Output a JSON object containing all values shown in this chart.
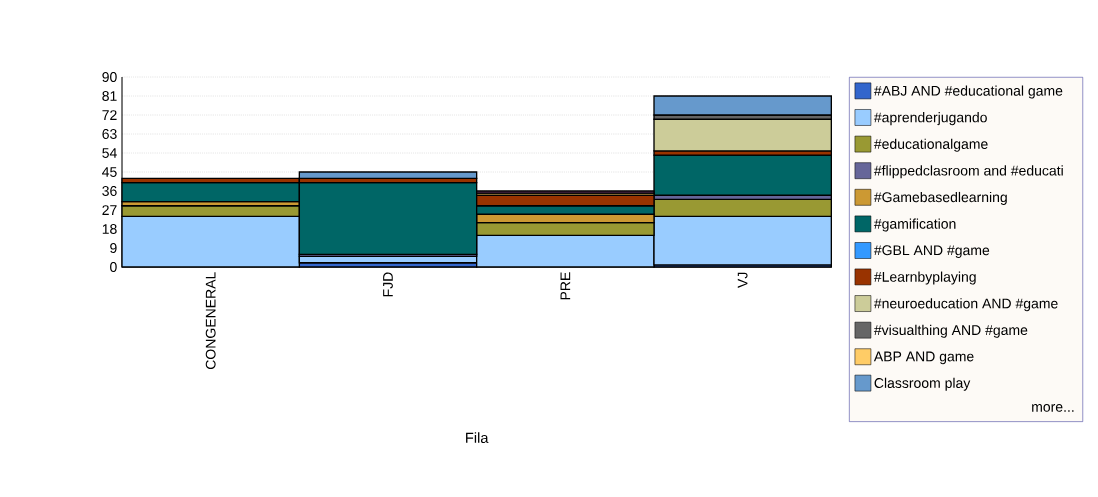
{
  "chart_data": {
    "type": "bar",
    "stacked": true,
    "xlabel": "Fila",
    "categories": [
      "CONGENERAL",
      "FJD",
      "PRE",
      "VJ"
    ],
    "ylim": [
      0,
      90
    ],
    "yticks": [
      0,
      9,
      18,
      27,
      36,
      45,
      54,
      63,
      72,
      81,
      90
    ],
    "grid": "y",
    "legend": "right",
    "annotations": [
      "more..."
    ],
    "series": [
      {
        "name": "#ABJ AND #educational game",
        "color": "#3366cc",
        "values": [
          null,
          2,
          null,
          1
        ]
      },
      {
        "name": "#aprenderjugando",
        "color": "#99ccff",
        "values": [
          24,
          3,
          15,
          23
        ]
      },
      {
        "name": "#educationalgame",
        "color": "#999933",
        "values": [
          5,
          null,
          6,
          8
        ]
      },
      {
        "name": "#flippedclasroom and #educati",
        "color": "#666699",
        "values": [
          null,
          1,
          null,
          2
        ]
      },
      {
        "name": "#Gamebasedlearning",
        "color": "#cc9933",
        "values": [
          2,
          null,
          4,
          null
        ]
      },
      {
        "name": "#gamification",
        "color": "#006666",
        "values": [
          9,
          34,
          4,
          19
        ]
      },
      {
        "name": "#GBL AND #game",
        "color": "#3399ff",
        "values": [
          null,
          null,
          null,
          null
        ]
      },
      {
        "name": "#Learnbyplaying",
        "color": "#993300",
        "values": [
          2,
          2,
          5,
          2
        ]
      },
      {
        "name": "#neuroeducation AND #game",
        "color": "#cccc99",
        "values": [
          null,
          null,
          null,
          15
        ]
      },
      {
        "name": "#visualthing AND #game",
        "color": "#666666",
        "values": [
          null,
          null,
          null,
          2
        ]
      },
      {
        "name": "ABP AND game",
        "color": "#ffcc66",
        "values": [
          null,
          null,
          1,
          null
        ]
      },
      {
        "name": "Classroom play",
        "color": "#6699cc",
        "values": [
          null,
          3,
          null,
          9
        ]
      },
      {
        "color": "#663366",
        "values": [
          null,
          null,
          1,
          null
        ]
      }
    ]
  }
}
